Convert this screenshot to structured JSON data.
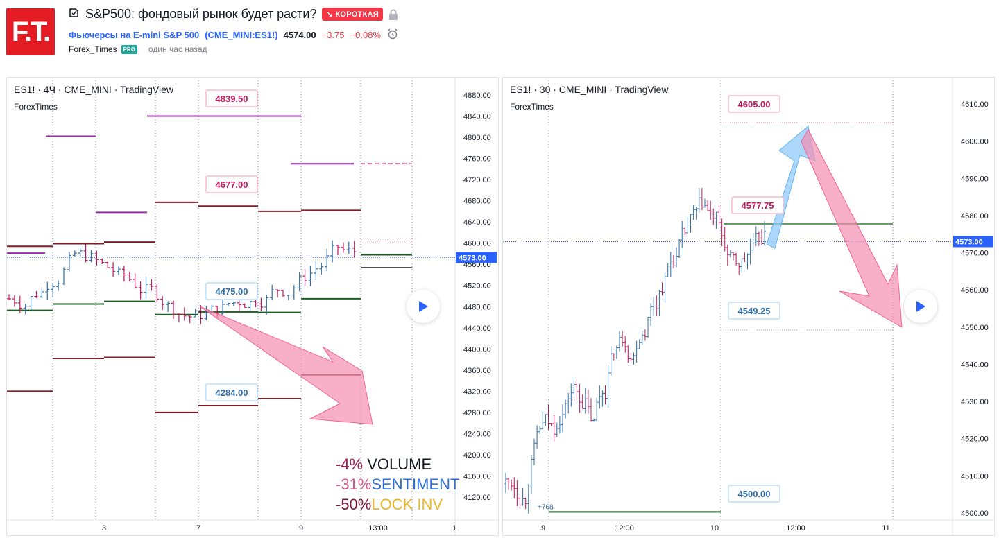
{
  "header": {
    "logo_text": "F.T.",
    "title": "S&P500: фондовый рынок будет расти?",
    "badge": "↘ КОРОТКАЯ",
    "symbol_name": "Фьючерсы на E-mini S&P 500",
    "symbol_code": "(CME_MINI:ES1!)",
    "price": "4574.00",
    "change": "−3.75",
    "change_pct": "−0.08%",
    "author": "Forex_Times",
    "pro": "PRO",
    "time": "один час назад"
  },
  "chart_left": {
    "title": "ES1! · 4Ч · CME_MINI · TradingView",
    "brand": "ForexTimes",
    "y_ticks": [
      "4880.00",
      "4840.00",
      "4800.00",
      "4760.00",
      "4720.00",
      "4680.00",
      "4640.00",
      "4600.00",
      "4560.00",
      "4520.00",
      "4480.00",
      "4440.00",
      "4400.00",
      "4360.00",
      "4320.00",
      "4280.00",
      "4240.00",
      "4200.00",
      "4160.00",
      "4120.00"
    ],
    "x_ticks": [
      "3",
      "7",
      "9",
      "13:00",
      "1"
    ],
    "current_price": "4573.00",
    "labels": [
      "4839.50",
      "4677.00",
      "4475.00",
      "4284.00"
    ],
    "legend": [
      {
        "pct": "-4%",
        "name": "VOLUME"
      },
      {
        "pct": "-31%",
        "name": "SENTIMENT"
      },
      {
        "pct": "-50%",
        "name": "LOCK INV"
      }
    ]
  },
  "chart_right": {
    "title": "ES1! · 30 · CME_MINI · TradingView",
    "brand": "ForexTimes",
    "y_ticks": [
      "4610.00",
      "4600.00",
      "4590.00",
      "4580.00",
      "4570.00",
      "4560.00",
      "4550.00",
      "4540.00",
      "4530.00",
      "4520.00",
      "4510.00",
      "4500.00"
    ],
    "x_ticks": [
      "9",
      "12:00",
      "10",
      "12:00",
      "11"
    ],
    "current_price": "4573.00",
    "labels": [
      "4605.00",
      "4577.75",
      "4549.25",
      "4500.00"
    ],
    "small_label": "+768"
  },
  "colors": {
    "up": "#2e6ca4",
    "down": "#c2185b",
    "pink": "#f48fb1",
    "blue": "#90caf9",
    "price_tag": "#2962ff"
  }
}
